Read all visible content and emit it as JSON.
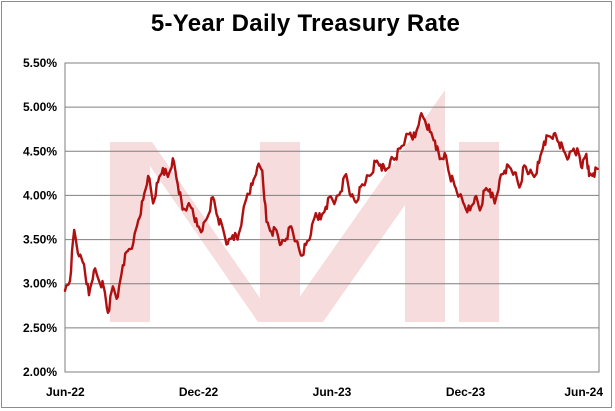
{
  "chart_data": {
    "type": "line",
    "title": "5-Year Daily Treasury Rate",
    "xlabel": "",
    "ylabel": "",
    "x_ticks": [
      "Jun-22",
      "Dec-22",
      "Jun-23",
      "Dec-23",
      "Jun-24"
    ],
    "y_ticks": [
      "2.00%",
      "2.50%",
      "3.00%",
      "3.50%",
      "4.00%",
      "4.50%",
      "5.00%",
      "5.50%"
    ],
    "ylim": [
      2.0,
      5.5
    ],
    "xlim": [
      "2022-06",
      "2024-06"
    ],
    "grid": "horizontal",
    "legend": "none",
    "colors": {
      "line": "#b01010",
      "watermark": "#f6dcdc",
      "grid": "#7f7f7f"
    },
    "series": [
      {
        "values": [
          [
            "2022-06-01",
            2.92
          ],
          [
            "2022-06-08",
            3.03
          ],
          [
            "2022-06-14",
            3.61
          ],
          [
            "2022-06-21",
            3.31
          ],
          [
            "2022-06-28",
            3.22
          ],
          [
            "2022-07-05",
            2.87
          ],
          [
            "2022-07-12",
            3.15
          ],
          [
            "2022-07-19",
            3.04
          ],
          [
            "2022-07-26",
            2.96
          ],
          [
            "2022-08-01",
            2.67
          ],
          [
            "2022-08-08",
            2.97
          ],
          [
            "2022-08-15",
            2.85
          ],
          [
            "2022-08-22",
            3.21
          ],
          [
            "2022-08-29",
            3.37
          ],
          [
            "2022-09-06",
            3.46
          ],
          [
            "2022-09-13",
            3.72
          ],
          [
            "2022-09-20",
            3.95
          ],
          [
            "2022-09-27",
            4.22
          ],
          [
            "2022-10-04",
            3.91
          ],
          [
            "2022-10-11",
            4.15
          ],
          [
            "2022-10-18",
            4.31
          ],
          [
            "2022-10-25",
            4.21
          ],
          [
            "2022-11-01",
            4.42
          ],
          [
            "2022-11-08",
            4.13
          ],
          [
            "2022-11-15",
            3.84
          ],
          [
            "2022-11-22",
            3.88
          ],
          [
            "2022-11-29",
            3.85
          ],
          [
            "2022-12-06",
            3.65
          ],
          [
            "2022-12-13",
            3.6
          ],
          [
            "2022-12-20",
            3.75
          ],
          [
            "2022-12-28",
            3.98
          ],
          [
            "2023-01-04",
            3.75
          ],
          [
            "2023-01-11",
            3.63
          ],
          [
            "2023-01-18",
            3.45
          ],
          [
            "2023-01-25",
            3.55
          ],
          [
            "2023-02-01",
            3.5
          ],
          [
            "2023-02-08",
            3.77
          ],
          [
            "2023-02-15",
            4.02
          ],
          [
            "2023-02-22",
            4.12
          ],
          [
            "2023-03-01",
            4.32
          ],
          [
            "2023-03-08",
            4.28
          ],
          [
            "2023-03-14",
            3.7
          ],
          [
            "2023-03-21",
            3.59
          ],
          [
            "2023-03-28",
            3.61
          ],
          [
            "2023-04-04",
            3.45
          ],
          [
            "2023-04-11",
            3.51
          ],
          [
            "2023-04-18",
            3.65
          ],
          [
            "2023-04-25",
            3.48
          ],
          [
            "2023-05-02",
            3.32
          ],
          [
            "2023-05-09",
            3.44
          ],
          [
            "2023-05-16",
            3.56
          ],
          [
            "2023-05-23",
            3.8
          ],
          [
            "2023-05-30",
            3.73
          ],
          [
            "2023-06-06",
            3.87
          ],
          [
            "2023-06-13",
            3.99
          ],
          [
            "2023-06-20",
            3.94
          ],
          [
            "2023-06-27",
            4.04
          ],
          [
            "2023-07-05",
            4.24
          ],
          [
            "2023-07-12",
            3.99
          ],
          [
            "2023-07-19",
            3.92
          ],
          [
            "2023-07-26",
            4.1
          ],
          [
            "2023-08-02",
            4.16
          ],
          [
            "2023-08-09",
            4.23
          ],
          [
            "2023-08-16",
            4.38
          ],
          [
            "2023-08-23",
            4.35
          ],
          [
            "2023-08-30",
            4.28
          ],
          [
            "2023-09-06",
            4.4
          ],
          [
            "2023-09-13",
            4.42
          ],
          [
            "2023-09-20",
            4.53
          ],
          [
            "2023-09-27",
            4.64
          ],
          [
            "2023-10-04",
            4.71
          ],
          [
            "2023-10-11",
            4.66
          ],
          [
            "2023-10-18",
            4.89
          ],
          [
            "2023-10-25",
            4.85
          ],
          [
            "2023-11-01",
            4.72
          ],
          [
            "2023-11-08",
            4.62
          ],
          [
            "2023-11-15",
            4.41
          ],
          [
            "2023-11-22",
            4.48
          ],
          [
            "2023-11-29",
            4.23
          ],
          [
            "2023-12-06",
            4.11
          ],
          [
            "2023-12-13",
            4.0
          ],
          [
            "2023-12-20",
            3.89
          ],
          [
            "2023-12-28",
            3.83
          ],
          [
            "2024-01-04",
            3.98
          ],
          [
            "2024-01-11",
            3.83
          ],
          [
            "2024-01-18",
            4.06
          ],
          [
            "2024-01-25",
            4.07
          ],
          [
            "2024-02-01",
            3.91
          ],
          [
            "2024-02-08",
            4.18
          ],
          [
            "2024-02-15",
            4.28
          ],
          [
            "2024-02-22",
            4.32
          ],
          [
            "2024-02-29",
            4.26
          ],
          [
            "2024-03-07",
            4.09
          ],
          [
            "2024-03-14",
            4.34
          ],
          [
            "2024-03-21",
            4.25
          ],
          [
            "2024-03-28",
            4.21
          ],
          [
            "2024-04-04",
            4.37
          ],
          [
            "2024-04-11",
            4.61
          ],
          [
            "2024-04-18",
            4.67
          ],
          [
            "2024-04-25",
            4.7
          ],
          [
            "2024-05-02",
            4.6
          ],
          [
            "2024-05-09",
            4.5
          ],
          [
            "2024-05-16",
            4.43
          ],
          [
            "2024-05-23",
            4.53
          ],
          [
            "2024-05-30",
            4.48
          ],
          [
            "2024-06-04",
            4.31
          ],
          [
            "2024-06-10",
            4.47
          ],
          [
            "2024-06-14",
            4.22
          ],
          [
            "2024-06-20",
            4.25
          ],
          [
            "2024-06-26",
            4.3
          ]
        ]
      }
    ]
  }
}
